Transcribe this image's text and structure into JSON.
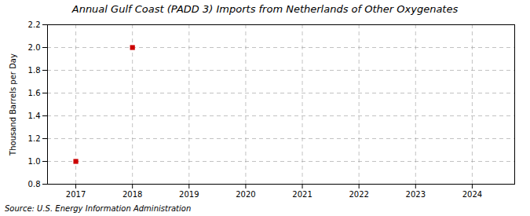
{
  "chart_data": {
    "type": "scatter",
    "title": "Annual Gulf Coast (PADD 3) Imports from Netherlands of Other Oxygenates",
    "ylabel": "Thousand Barrels per Day",
    "source": "Source: U.S. Energy Information Administration",
    "x": [
      2017,
      2018
    ],
    "values": [
      1.0,
      2.0
    ],
    "color": "#cc0000",
    "marker": "square",
    "xlim": [
      2016.5,
      2024.75
    ],
    "xticks": [
      2017,
      2018,
      2019,
      2020,
      2021,
      2022,
      2023,
      2024
    ],
    "ylim": [
      0.8,
      2.2
    ],
    "yticks": [
      0.8,
      {
        "value": 1.0,
        "label": "1.0"
      },
      1.2,
      1.4,
      1.6,
      1.8,
      {
        "value": 2.0,
        "label": "2.0"
      },
      2.2
    ],
    "grid": true
  }
}
